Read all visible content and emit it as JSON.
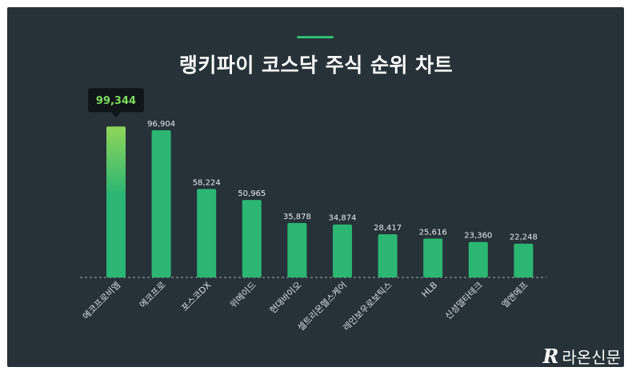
{
  "chart_data": {
    "type": "bar",
    "title": "랭키파이 코스닥 주식 순위 차트",
    "categories": [
      "에코프로비엠",
      "에코프로",
      "포스코DX",
      "위메이드",
      "현대바이오",
      "셀트리온헬스케어",
      "레인보우로보틱스",
      "HLB",
      "신성델타테크",
      "엘앤에프"
    ],
    "values": [
      99344,
      96904,
      58224,
      50965,
      35878,
      34874,
      28417,
      25616,
      23360,
      22248
    ],
    "value_labels": [
      "99,344",
      "96,904",
      "58,224",
      "50,965",
      "35,878",
      "34,874",
      "28,417",
      "25,616",
      "23,360",
      "22,248"
    ],
    "highlight_index": 0,
    "ylim": [
      0,
      100000
    ],
    "grid": false,
    "legend": "none"
  },
  "colors": {
    "background": "#263238",
    "bar": "#2bb673",
    "bar_highlight_top": "#8fd65a",
    "highlight_value": "#7fdc5a",
    "axis_line": "#9aa5ab"
  },
  "brand": {
    "name": "라온신문",
    "icon": "quill-r-logo"
  }
}
